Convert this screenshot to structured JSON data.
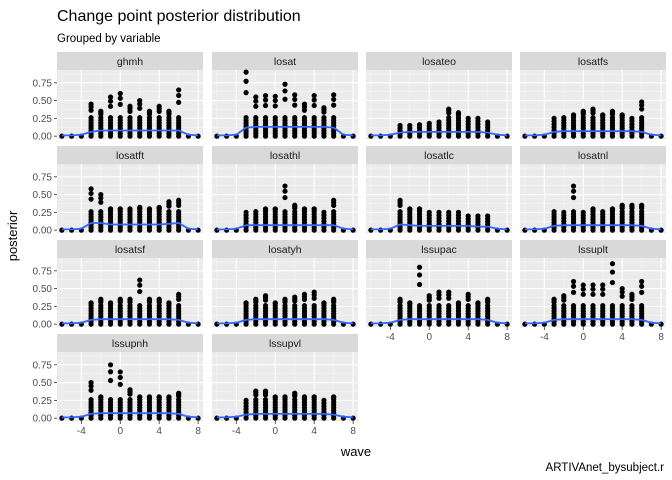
{
  "chart_data": {
    "type": "scatter",
    "title": "Change point posterior distribution",
    "subtitle": "Grouped by variable",
    "xlabel": "wave",
    "ylabel": "posterior",
    "caption": "ARTIVAnet_bysubject.r",
    "xlim": [
      -6.5,
      8.5
    ],
    "ylim": [
      -0.04,
      0.93
    ],
    "x_ticks": [
      -4,
      0,
      4,
      8
    ],
    "x_tick_labels": [
      "-4",
      "0",
      "4",
      "8"
    ],
    "y_ticks": [
      0,
      0.25,
      0.5,
      0.75
    ],
    "y_tick_labels": [
      "0.00",
      "0.25",
      "0.50",
      "0.75"
    ],
    "x": [
      -6,
      -5,
      -4,
      -3,
      -2,
      -1,
      0,
      1,
      2,
      3,
      4,
      5,
      6,
      7,
      8
    ],
    "smooth_color": "#3366ff",
    "point_color": "#000000",
    "panels": [
      {
        "name": "ghmh",
        "max": [
          0.02,
          0.02,
          0.02,
          0.45,
          0.35,
          0.55,
          0.6,
          0.42,
          0.5,
          0.35,
          0.42,
          0.35,
          0.65,
          0.02,
          0.02
        ],
        "smooth": [
          0.01,
          0.01,
          0.02,
          0.06,
          0.08,
          0.08,
          0.08,
          0.08,
          0.08,
          0.08,
          0.08,
          0.08,
          0.08,
          0.02,
          0.01
        ]
      },
      {
        "name": "losat",
        "max": [
          0.02,
          0.02,
          0.02,
          0.9,
          0.55,
          0.57,
          0.56,
          0.73,
          0.58,
          0.45,
          0.57,
          0.4,
          0.58,
          0.02,
          0.02
        ],
        "smooth": [
          0.01,
          0.01,
          0.02,
          0.12,
          0.13,
          0.13,
          0.13,
          0.13,
          0.13,
          0.13,
          0.13,
          0.13,
          0.12,
          0.02,
          0.01
        ]
      },
      {
        "name": "losateo",
        "max": [
          0.02,
          0.02,
          0.02,
          0.15,
          0.15,
          0.16,
          0.18,
          0.2,
          0.38,
          0.33,
          0.25,
          0.25,
          0.2,
          0.02,
          0.02
        ],
        "smooth": [
          0.01,
          0.01,
          0.02,
          0.05,
          0.06,
          0.06,
          0.06,
          0.06,
          0.06,
          0.06,
          0.06,
          0.06,
          0.05,
          0.02,
          0.01
        ]
      },
      {
        "name": "losatfs",
        "max": [
          0.02,
          0.02,
          0.02,
          0.25,
          0.28,
          0.3,
          0.35,
          0.38,
          0.3,
          0.35,
          0.3,
          0.25,
          0.48,
          0.02,
          0.02
        ],
        "smooth": [
          0.01,
          0.01,
          0.02,
          0.06,
          0.07,
          0.07,
          0.07,
          0.07,
          0.07,
          0.07,
          0.07,
          0.07,
          0.06,
          0.02,
          0.01
        ]
      },
      {
        "name": "losatft",
        "max": [
          0.02,
          0.02,
          0.02,
          0.58,
          0.5,
          0.3,
          0.3,
          0.3,
          0.32,
          0.3,
          0.32,
          0.4,
          0.42,
          0.02,
          0.02
        ],
        "smooth": [
          0.01,
          0.01,
          0.02,
          0.1,
          0.1,
          0.08,
          0.08,
          0.08,
          0.08,
          0.08,
          0.08,
          0.09,
          0.1,
          0.02,
          0.01
        ]
      },
      {
        "name": "losathl",
        "max": [
          0.02,
          0.02,
          0.02,
          0.25,
          0.28,
          0.3,
          0.3,
          0.62,
          0.35,
          0.3,
          0.3,
          0.25,
          0.42,
          0.02,
          0.02
        ],
        "smooth": [
          0.01,
          0.01,
          0.02,
          0.07,
          0.07,
          0.07,
          0.07,
          0.07,
          0.07,
          0.07,
          0.07,
          0.07,
          0.07,
          0.02,
          0.01
        ]
      },
      {
        "name": "losatlc",
        "max": [
          0.02,
          0.02,
          0.02,
          0.42,
          0.3,
          0.3,
          0.25,
          0.25,
          0.25,
          0.25,
          0.2,
          0.2,
          0.2,
          0.02,
          0.02
        ],
        "smooth": [
          0.01,
          0.01,
          0.02,
          0.08,
          0.07,
          0.06,
          0.06,
          0.06,
          0.06,
          0.06,
          0.06,
          0.05,
          0.05,
          0.02,
          0.01
        ]
      },
      {
        "name": "losatnl",
        "max": [
          0.02,
          0.02,
          0.02,
          0.28,
          0.25,
          0.62,
          0.25,
          0.3,
          0.28,
          0.3,
          0.35,
          0.35,
          0.35,
          0.02,
          0.02
        ],
        "smooth": [
          0.01,
          0.01,
          0.02,
          0.06,
          0.07,
          0.07,
          0.07,
          0.07,
          0.07,
          0.07,
          0.07,
          0.07,
          0.06,
          0.02,
          0.01
        ]
      },
      {
        "name": "losatsf",
        "max": [
          0.02,
          0.02,
          0.02,
          0.3,
          0.35,
          0.3,
          0.35,
          0.35,
          0.62,
          0.35,
          0.35,
          0.3,
          0.42,
          0.02,
          0.02
        ],
        "smooth": [
          0.01,
          0.01,
          0.02,
          0.06,
          0.07,
          0.07,
          0.07,
          0.07,
          0.07,
          0.07,
          0.07,
          0.07,
          0.06,
          0.02,
          0.01
        ]
      },
      {
        "name": "losatyh",
        "max": [
          0.02,
          0.02,
          0.02,
          0.3,
          0.35,
          0.4,
          0.3,
          0.35,
          0.38,
          0.42,
          0.45,
          0.3,
          0.35,
          0.02,
          0.02
        ],
        "smooth": [
          0.01,
          0.01,
          0.02,
          0.06,
          0.07,
          0.07,
          0.07,
          0.07,
          0.07,
          0.07,
          0.07,
          0.07,
          0.06,
          0.02,
          0.01
        ]
      },
      {
        "name": "lssupac",
        "max": [
          0.02,
          0.02,
          0.02,
          0.35,
          0.3,
          0.8,
          0.4,
          0.45,
          0.45,
          0.3,
          0.42,
          0.3,
          0.35,
          0.02,
          0.02
        ],
        "smooth": [
          0.01,
          0.01,
          0.02,
          0.06,
          0.07,
          0.07,
          0.07,
          0.07,
          0.07,
          0.07,
          0.07,
          0.07,
          0.06,
          0.02,
          0.01
        ]
      },
      {
        "name": "lssuplt",
        "max": [
          0.02,
          0.02,
          0.02,
          0.35,
          0.4,
          0.6,
          0.55,
          0.55,
          0.55,
          0.85,
          0.5,
          0.42,
          0.6,
          0.02,
          0.02
        ],
        "smooth": [
          0.01,
          0.01,
          0.02,
          0.06,
          0.07,
          0.07,
          0.07,
          0.07,
          0.07,
          0.07,
          0.07,
          0.07,
          0.06,
          0.02,
          0.01
        ]
      },
      {
        "name": "lssupnh",
        "max": [
          0.02,
          0.02,
          0.02,
          0.5,
          0.3,
          0.75,
          0.65,
          0.4,
          0.3,
          0.3,
          0.3,
          0.3,
          0.35,
          0.02,
          0.02
        ],
        "smooth": [
          0.01,
          0.01,
          0.02,
          0.06,
          0.07,
          0.07,
          0.07,
          0.07,
          0.07,
          0.07,
          0.07,
          0.07,
          0.06,
          0.02,
          0.01
        ]
      },
      {
        "name": "lssupvl",
        "max": [
          0.02,
          0.02,
          0.02,
          0.25,
          0.38,
          0.38,
          0.3,
          0.3,
          0.35,
          0.3,
          0.3,
          0.25,
          0.3,
          0.02,
          0.02
        ],
        "smooth": [
          0.01,
          0.01,
          0.02,
          0.05,
          0.06,
          0.06,
          0.06,
          0.06,
          0.06,
          0.06,
          0.06,
          0.06,
          0.05,
          0.02,
          0.01
        ]
      }
    ]
  }
}
